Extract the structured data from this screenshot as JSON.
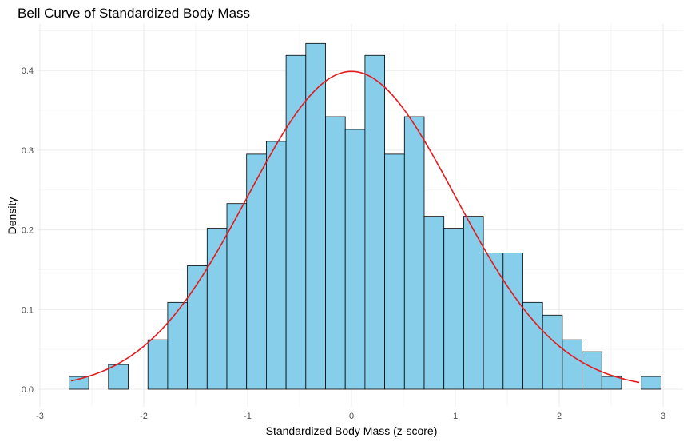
{
  "chart_data": {
    "type": "bar",
    "title": "Bell Curve of Standardized Body Mass",
    "xlabel": "Standardized Body Mass (z-score)",
    "ylabel": "Density",
    "xlim": [
      -3,
      3
    ],
    "ylim": [
      0,
      0.44
    ],
    "x_ticks": [
      -3,
      -2,
      -1,
      0,
      1,
      2,
      3
    ],
    "y_ticks": [
      0.0,
      0.1,
      0.2,
      0.3,
      0.4
    ],
    "x_tick_labels": [
      "-3",
      "-2",
      "-1",
      "0",
      "1",
      "2",
      "3"
    ],
    "y_tick_labels": [
      "0.0",
      "0.1",
      "0.2",
      "0.3",
      "0.4"
    ],
    "grid": true,
    "bin_width": 0.19,
    "bins": [
      {
        "x0": -2.72,
        "density": 0.016
      },
      {
        "x0": -2.53,
        "density": 0.0
      },
      {
        "x0": -2.34,
        "density": 0.031
      },
      {
        "x0": -2.15,
        "density": 0.0
      },
      {
        "x0": -1.96,
        "density": 0.062
      },
      {
        "x0": -1.77,
        "density": 0.109
      },
      {
        "x0": -1.58,
        "density": 0.155
      },
      {
        "x0": -1.39,
        "density": 0.202
      },
      {
        "x0": -1.2,
        "density": 0.233
      },
      {
        "x0": -1.01,
        "density": 0.295
      },
      {
        "x0": -0.82,
        "density": 0.311
      },
      {
        "x0": -0.63,
        "density": 0.419
      },
      {
        "x0": -0.44,
        "density": 0.434
      },
      {
        "x0": -0.25,
        "density": 0.342
      },
      {
        "x0": -0.06,
        "density": 0.326
      },
      {
        "x0": 0.13,
        "density": 0.419
      },
      {
        "x0": 0.32,
        "density": 0.295
      },
      {
        "x0": 0.51,
        "density": 0.342
      },
      {
        "x0": 0.7,
        "density": 0.217
      },
      {
        "x0": 0.89,
        "density": 0.202
      },
      {
        "x0": 1.08,
        "density": 0.217
      },
      {
        "x0": 1.27,
        "density": 0.171
      },
      {
        "x0": 1.46,
        "density": 0.171
      },
      {
        "x0": 1.65,
        "density": 0.109
      },
      {
        "x0": 1.84,
        "density": 0.093
      },
      {
        "x0": 2.03,
        "density": 0.062
      },
      {
        "x0": 2.22,
        "density": 0.047
      },
      {
        "x0": 2.41,
        "density": 0.016
      },
      {
        "x0": 2.6,
        "density": 0.0
      },
      {
        "x0": 2.79,
        "density": 0.016
      }
    ],
    "curve": {
      "type": "normal-density",
      "mean": 0,
      "sd": 1,
      "x_range": [
        -2.7,
        2.77
      ]
    },
    "colors": {
      "bar_fill": "#87CEEB",
      "bar_outline": "#000000",
      "curve": "#E41A1C"
    }
  }
}
